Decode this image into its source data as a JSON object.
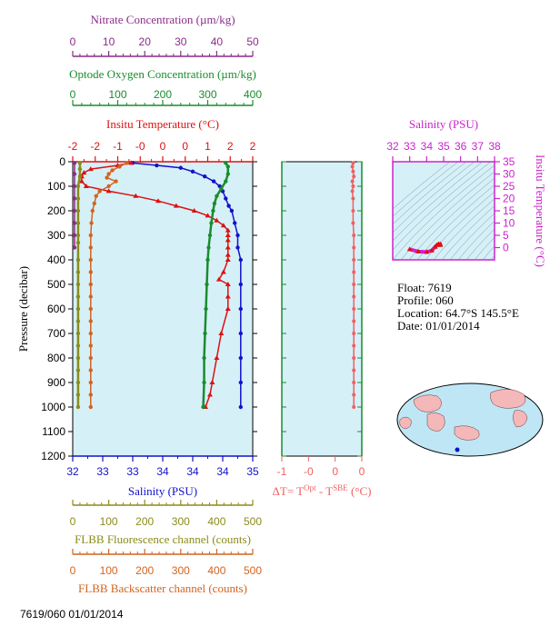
{
  "colors": {
    "nitrate": "#8b2b8b",
    "oxygen": "#1a8c2e",
    "temperature": "#dd1111",
    "salinity": "#1111cc",
    "fluorescence": "#8b8b1a",
    "backscatter": "#d2641e",
    "delta_t": "#f06060",
    "ts": "#cc22cc",
    "panel_bg": "#d6f0f8"
  },
  "info": {
    "float": "Float:  7619",
    "profile": "Profile:  060",
    "location": "Location:  64.7°S  145.5°E",
    "date": "Date:  01/01/2014"
  },
  "footer_code": "7619/060 01/01/2014",
  "chart_data": [
    {
      "type": "line",
      "name": "main-profile",
      "ylabel": "Pressure (decibar)",
      "ylim": [
        1200,
        0
      ],
      "yticks": [
        0,
        100,
        200,
        300,
        400,
        500,
        600,
        700,
        800,
        900,
        1000,
        1100,
        1200
      ],
      "axes": {
        "nitrate": {
          "label": "Nitrate Concentration (µm/kg)",
          "range": [
            0,
            50
          ],
          "ticks": [
            "0",
            "10",
            "20",
            "30",
            "40",
            "50"
          ]
        },
        "oxygen": {
          "label": "Optode Oxygen Concentration (µm/kg)",
          "range": [
            0,
            400
          ],
          "ticks": [
            "0",
            "100",
            "200",
            "300",
            "400"
          ]
        },
        "temperature": {
          "label": "Insitu Temperature (°C)",
          "range": [
            -2,
            2
          ],
          "ticks": [
            "-2",
            "-2",
            "-1",
            "-0",
            "0",
            "0",
            "1",
            "2",
            "2"
          ]
        },
        "salinity": {
          "label": "Salinity (PSU)",
          "range": [
            32,
            35
          ],
          "ticks": [
            "32",
            "33",
            "33",
            "34",
            "34",
            "34",
            "35"
          ]
        },
        "fluorescence": {
          "label": "FLBB Fluorescence channel (counts)",
          "range": [
            0,
            500
          ],
          "ticks": [
            "0",
            "100",
            "200",
            "300",
            "400",
            "500"
          ]
        },
        "backscatter": {
          "label": "FLBB Backscatter channel (counts)",
          "range": [
            0,
            500
          ],
          "ticks": [
            "0",
            "100",
            "200",
            "300",
            "400",
            "500"
          ]
        }
      },
      "series": [
        {
          "key": "salinity",
          "p": [
            5,
            15,
            25,
            40,
            60,
            80,
            100,
            120,
            150,
            180,
            200,
            250,
            300,
            350,
            400,
            500,
            600,
            700,
            800,
            900,
            1000
          ],
          "v": [
            33.0,
            33.4,
            33.8,
            34.0,
            34.2,
            34.35,
            34.45,
            34.5,
            34.55,
            34.6,
            34.65,
            34.7,
            34.75,
            34.75,
            34.8,
            34.8,
            34.8,
            34.8,
            34.8,
            34.8,
            34.8
          ]
        },
        {
          "key": "temperature",
          "p": [
            5,
            15,
            30,
            45,
            60,
            80,
            100,
            120,
            140,
            160,
            180,
            200,
            220,
            240,
            260,
            280,
            300,
            320,
            350,
            380,
            400,
            450,
            480,
            500,
            550,
            600,
            700,
            800,
            900,
            950,
            1000
          ],
          "v": [
            -0.7,
            -1.0,
            -1.6,
            -1.75,
            -1.8,
            -1.8,
            -1.7,
            -1.2,
            -0.6,
            -0.1,
            0.3,
            0.7,
            1.0,
            1.2,
            1.35,
            1.45,
            1.45,
            1.45,
            1.45,
            1.45,
            1.45,
            1.35,
            1.25,
            1.45,
            1.45,
            1.45,
            1.3,
            1.2,
            1.1,
            1.05,
            0.95
          ]
        },
        {
          "key": "oxygen",
          "p": [
            5,
            20,
            50,
            80,
            110,
            140,
            170,
            200,
            250,
            300,
            350,
            400,
            500,
            600,
            700,
            800,
            900,
            1000
          ],
          "v": [
            340,
            345,
            345,
            340,
            330,
            320,
            315,
            312,
            308,
            305,
            302,
            300,
            298,
            296,
            294,
            292,
            292,
            290
          ]
        },
        {
          "key": "nitrate",
          "p": [
            5,
            50,
            100,
            150,
            200,
            250,
            300,
            350
          ],
          "v": [
            0.5,
            0.5,
            0.5,
            0.5,
            0.5,
            0.5,
            0.5,
            0.5
          ]
        },
        {
          "key": "fluorescence",
          "p": [
            5,
            30,
            60,
            100,
            150,
            200,
            250,
            300,
            330,
            400,
            450,
            500,
            550,
            600,
            650,
            700,
            750,
            800,
            850,
            900,
            950,
            1000
          ],
          "v": [
            20,
            20,
            20,
            15,
            15,
            15,
            15,
            15,
            15,
            15,
            15,
            15,
            15,
            15,
            15,
            15,
            15,
            15,
            15,
            15,
            15,
            15
          ]
        },
        {
          "key": "backscatter",
          "p": [
            5,
            20,
            35,
            50,
            65,
            80,
            100,
            120,
            140,
            170,
            200,
            250,
            300,
            350,
            400,
            450,
            500,
            550,
            600,
            650,
            700,
            750,
            800,
            850,
            900,
            950,
            1000
          ],
          "v": [
            150,
            130,
            110,
            100,
            95,
            120,
            100,
            75,
            65,
            60,
            55,
            52,
            50,
            50,
            50,
            50,
            50,
            50,
            50,
            50,
            50,
            50,
            50,
            50,
            50,
            50,
            50
          ]
        }
      ]
    },
    {
      "type": "line",
      "name": "delta-t",
      "xlabel_main": "ΔT= T",
      "xlabel_sup1": "Opt",
      "xlabel_mid": " - T",
      "xlabel_sup2": "SBE",
      "xlabel_end": " (°C)",
      "xlim": [
        -1,
        0.1
      ],
      "ticks": [
        "-1",
        "-0",
        "0",
        "0"
      ],
      "ylim": [
        1200,
        0
      ],
      "p": [
        5,
        20,
        40,
        60,
        80,
        100,
        120,
        150,
        200,
        250,
        300,
        350,
        400,
        450,
        500,
        550,
        600,
        650,
        700,
        750,
        800,
        850,
        900,
        950,
        1000
      ],
      "v": [
        -0.02,
        -0.03,
        -0.02,
        -0.01,
        -0.03,
        -0.02,
        -0.03,
        -0.02,
        -0.02,
        -0.02,
        -0.01,
        -0.01,
        -0.01,
        -0.01,
        -0.01,
        -0.01,
        -0.01,
        -0.01,
        -0.01,
        -0.01,
        -0.01,
        -0.01,
        -0.01,
        -0.01,
        -0.01
      ]
    },
    {
      "type": "scatter",
      "name": "ts-diagram",
      "xlabel": "Salinity (PSU)",
      "ylabel": "Insitu Temperature (°C)",
      "xlim": [
        32,
        38
      ],
      "ylim": [
        -5,
        35
      ],
      "xticks": [
        "32",
        "33",
        "34",
        "35",
        "36",
        "37",
        "38"
      ],
      "yticks": [
        "0",
        "5",
        "10",
        "15",
        "20",
        "25",
        "30",
        "35"
      ],
      "s": [
        33.0,
        33.5,
        34.0,
        34.3,
        34.5,
        34.6,
        34.7,
        34.8,
        34.8
      ],
      "t": [
        -0.7,
        -1.6,
        -1.8,
        -1.2,
        0.3,
        1.0,
        1.45,
        1.45,
        1.0
      ]
    }
  ]
}
